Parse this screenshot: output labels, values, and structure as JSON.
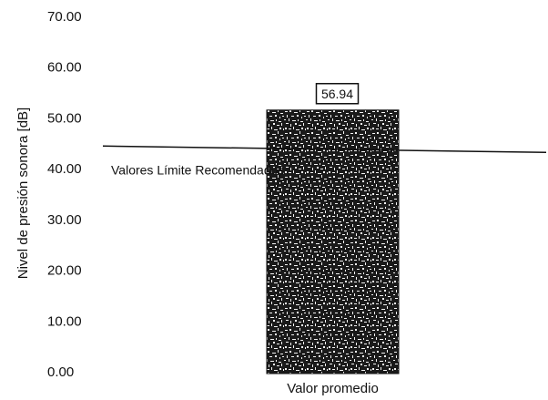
{
  "chart_data": {
    "type": "bar",
    "title": "",
    "xlabel": "",
    "ylabel": "Nivel de presión sonora [dB]",
    "ylim": [
      0,
      70
    ],
    "yticks": [
      "0.00",
      "10.00",
      "20.00",
      "30.00",
      "40.00",
      "50.00",
      "60.00",
      "70.00"
    ],
    "categories": [
      "Valor promedio"
    ],
    "values": [
      56.94
    ],
    "data_labels": [
      "56.94"
    ],
    "reference_line": {
      "label": "Valores Límite Recomendados",
      "value": 45
    },
    "grid": false,
    "legend": "none",
    "colors": {
      "bar_fill": "#1a1a1a",
      "bar_noise": "#f2f2f2",
      "line": "#111111",
      "text": "#111111"
    }
  }
}
